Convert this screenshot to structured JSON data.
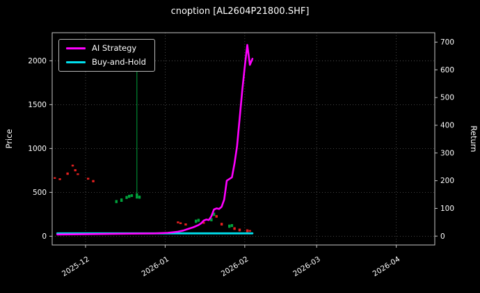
{
  "chart_data": {
    "type": "line",
    "title": "cnoption [AL2604P21800.SHF]",
    "xlabel": "",
    "ylabel_left": "Price",
    "ylabel_right": "Return",
    "grid": true,
    "background": "#000000",
    "text_color": "#ffffff",
    "grid_color": "#5a5a5a",
    "spine_color": "#c8c8c8",
    "xlim": [
      "2025-11-18",
      "2026-04-16"
    ],
    "price_ylim": [
      -100,
      2320
    ],
    "return_ylim": [
      -32,
      734
    ],
    "price_ticks": [
      0,
      500,
      1000,
      1500,
      2000
    ],
    "return_ticks": [
      0,
      100,
      200,
      300,
      400,
      500,
      600,
      700
    ],
    "x_ticks": [
      {
        "date": "2025-12-01",
        "label": "2025-12"
      },
      {
        "date": "2026-01-01",
        "label": "2026-01"
      },
      {
        "date": "2026-02-01",
        "label": "2026-02"
      },
      {
        "date": "2026-03-01",
        "label": "2026-03"
      },
      {
        "date": "2026-04-01",
        "label": "2026-04"
      }
    ],
    "legend": {
      "position": "upper-left",
      "entries": [
        {
          "label": "AI Strategy",
          "color": "#ff00ff"
        },
        {
          "label": "Buy-and-Hold",
          "color": "#00e0ee"
        }
      ]
    },
    "series": [
      {
        "name": "Buy-and-Hold",
        "axis": "return",
        "color": "#00e0ee",
        "width": 2.8,
        "points": [
          [
            "2025-11-20",
            10
          ],
          [
            "2026-02-04",
            10
          ]
        ]
      },
      {
        "name": "AI Strategy",
        "axis": "return",
        "color": "#ff00ff",
        "width": 2.6,
        "points": [
          [
            "2025-11-20",
            6
          ],
          [
            "2025-12-10",
            8
          ],
          [
            "2025-12-28",
            10
          ],
          [
            "2026-01-02",
            12
          ],
          [
            "2026-01-06",
            16
          ],
          [
            "2026-01-08",
            20
          ],
          [
            "2026-01-10",
            26
          ],
          [
            "2026-01-12",
            32
          ],
          [
            "2026-01-14",
            40
          ],
          [
            "2026-01-15",
            46
          ],
          [
            "2026-01-16",
            56
          ],
          [
            "2026-01-17",
            60
          ],
          [
            "2026-01-18",
            58
          ],
          [
            "2026-01-19",
            72
          ],
          [
            "2026-01-20",
            96
          ],
          [
            "2026-01-21",
            100
          ],
          [
            "2026-01-22",
            98
          ],
          [
            "2026-01-23",
            106
          ],
          [
            "2026-01-24",
            132
          ],
          [
            "2026-01-25",
            200
          ],
          [
            "2026-01-26",
            206
          ],
          [
            "2026-01-27",
            212
          ],
          [
            "2026-01-28",
            262
          ],
          [
            "2026-01-29",
            325
          ],
          [
            "2026-01-30",
            425
          ],
          [
            "2026-01-31",
            525
          ],
          [
            "2026-02-01",
            610
          ],
          [
            "2026-02-02",
            690
          ],
          [
            "2026-02-03",
            618
          ],
          [
            "2026-02-04",
            640
          ]
        ]
      }
    ],
    "candles": [
      {
        "date": "2025-11-19",
        "low": 655,
        "high": 672,
        "color": "red"
      },
      {
        "date": "2025-11-21",
        "low": 640,
        "high": 660,
        "color": "red"
      },
      {
        "date": "2025-11-24",
        "low": 700,
        "high": 726,
        "color": "red"
      },
      {
        "date": "2025-11-26",
        "low": 795,
        "high": 815,
        "color": "red"
      },
      {
        "date": "2025-11-27",
        "low": 740,
        "high": 764,
        "color": "red"
      },
      {
        "date": "2025-11-28",
        "low": 698,
        "high": 716,
        "color": "red"
      },
      {
        "date": "2025-12-02",
        "low": 645,
        "high": 666,
        "color": "red"
      },
      {
        "date": "2025-12-04",
        "low": 615,
        "high": 640,
        "color": "red"
      },
      {
        "date": "2025-12-13",
        "low": 378,
        "high": 412,
        "color": "green"
      },
      {
        "date": "2025-12-15",
        "low": 392,
        "high": 430,
        "color": "green"
      },
      {
        "date": "2025-12-17",
        "low": 425,
        "high": 458,
        "color": "green"
      },
      {
        "date": "2025-12-18",
        "low": 438,
        "high": 472,
        "color": "green"
      },
      {
        "date": "2025-12-19",
        "low": 448,
        "high": 478,
        "color": "green"
      },
      {
        "date": "2025-12-21",
        "low": 430,
        "high": 1950,
        "body": [
          430,
          488
        ],
        "color": "green"
      },
      {
        "date": "2025-12-22",
        "low": 428,
        "high": 462,
        "color": "green"
      },
      {
        "date": "2026-01-06",
        "low": 148,
        "high": 168,
        "color": "red"
      },
      {
        "date": "2026-01-07",
        "low": 138,
        "high": 158,
        "color": "red"
      },
      {
        "date": "2026-01-09",
        "low": 122,
        "high": 146,
        "color": "red"
      },
      {
        "date": "2026-01-13",
        "low": 152,
        "high": 188,
        "color": "green"
      },
      {
        "date": "2026-01-14",
        "low": 165,
        "high": 198,
        "color": "green"
      },
      {
        "date": "2026-01-16",
        "low": 142,
        "high": 164,
        "color": "red"
      },
      {
        "date": "2026-01-19",
        "low": 170,
        "high": 206,
        "color": "green"
      },
      {
        "date": "2026-01-20",
        "low": 232,
        "high": 268,
        "color": "green"
      },
      {
        "date": "2026-01-21",
        "low": 212,
        "high": 240,
        "color": "red"
      },
      {
        "date": "2026-01-23",
        "low": 122,
        "high": 152,
        "color": "red"
      },
      {
        "date": "2026-01-26",
        "low": 96,
        "high": 132,
        "color": "green"
      },
      {
        "date": "2026-01-27",
        "low": 105,
        "high": 138,
        "color": "green"
      },
      {
        "date": "2026-01-28",
        "low": 72,
        "high": 102,
        "color": "red"
      },
      {
        "date": "2026-01-30",
        "low": 56,
        "high": 86,
        "color": "red"
      },
      {
        "date": "2026-02-02",
        "low": 46,
        "high": 78,
        "color": "red"
      },
      {
        "date": "2026-02-03",
        "low": 52,
        "high": 70,
        "color": "red"
      }
    ],
    "candle_colors": {
      "red": "#e32020",
      "green": "#00a23c"
    }
  }
}
